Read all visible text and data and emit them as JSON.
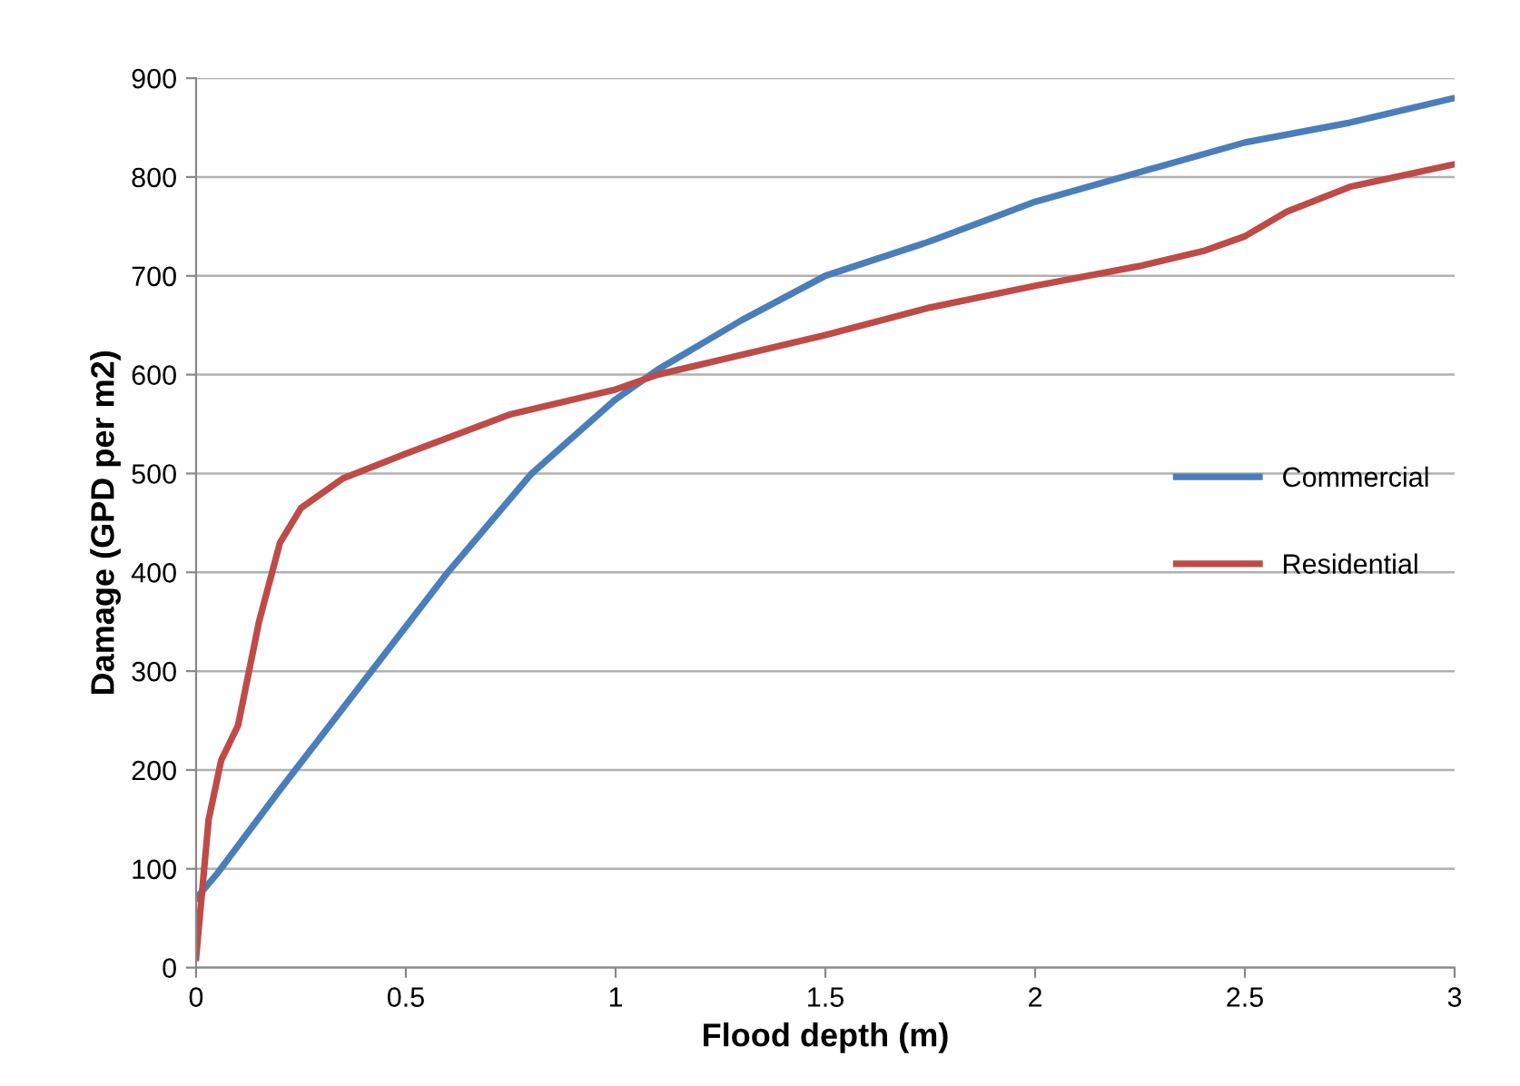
{
  "chart_data": {
    "type": "line",
    "xlabel": "Flood depth (m)",
    "ylabel": "Damage (GPD per m2)",
    "xlim": [
      0,
      3
    ],
    "ylim": [
      0,
      900
    ],
    "xticks": [
      0,
      0.5,
      1,
      1.5,
      2,
      2.5,
      3
    ],
    "yticks": [
      0,
      100,
      200,
      300,
      400,
      500,
      600,
      700,
      800,
      900
    ],
    "grid": "y",
    "legend": "right",
    "marker": "none",
    "line_style": "solid",
    "series": [
      {
        "name": "Commercial",
        "color": "#4a7ebb",
        "x": [
          0,
          0.05,
          0.2,
          0.4,
          0.6,
          0.8,
          1.0,
          1.1,
          1.3,
          1.5,
          1.75,
          2,
          2.25,
          2.5,
          2.75,
          3
        ],
        "values": [
          70,
          95,
          180,
          290,
          400,
          500,
          575,
          605,
          655,
          700,
          735,
          775,
          805,
          835,
          855,
          880
        ]
      },
      {
        "name": "Residential",
        "color": "#be4b48",
        "x": [
          0,
          0.03,
          0.06,
          0.1,
          0.15,
          0.2,
          0.25,
          0.35,
          0.5,
          0.75,
          1,
          1.1,
          1.5,
          1.75,
          2,
          2.25,
          2.4,
          2.5,
          2.6,
          2.75,
          3
        ],
        "values": [
          10,
          150,
          210,
          245,
          350,
          430,
          465,
          495,
          520,
          560,
          585,
          600,
          640,
          668,
          690,
          710,
          725,
          740,
          765,
          790,
          813
        ]
      }
    ]
  }
}
